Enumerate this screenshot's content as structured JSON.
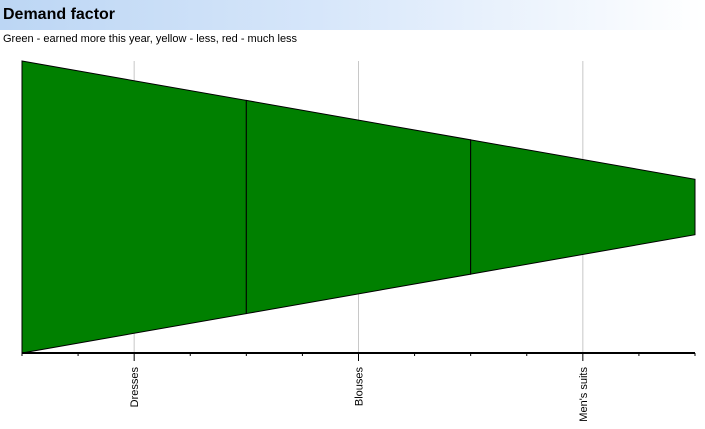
{
  "header": {
    "title": "Demand factor",
    "subtitle": "Green - earned more this year, yellow - less, red - much less"
  },
  "colors": {
    "fill": "#008000",
    "outline": "#000000",
    "grid": "#c8c8c8",
    "title_gradient_start": "#bcd6f4"
  },
  "chart_data": {
    "type": "area",
    "categories": [
      "Dresses",
      "Blouses",
      "Men's suits"
    ],
    "boundary_values": [
      100,
      73,
      46,
      19
    ],
    "segment_colors": [
      "green",
      "green",
      "green"
    ],
    "grid": true
  }
}
